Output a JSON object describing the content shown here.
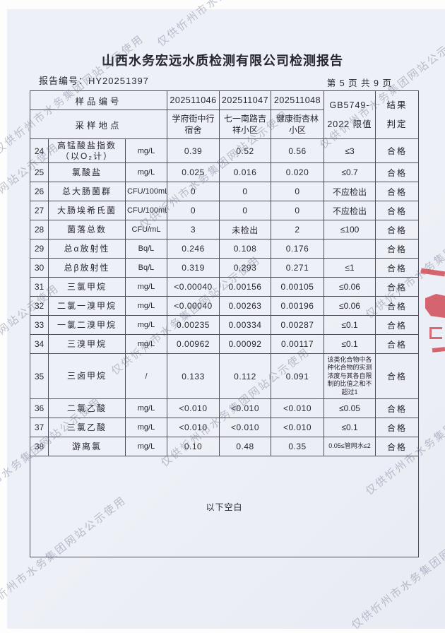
{
  "page": {
    "title": "山西水务宏远水质检测有限公司检测报告",
    "report_no": "报告编号：HY20251397",
    "page_indicator": "第 5 页 共 9 页",
    "below_blank": "以下空白"
  },
  "watermark": {
    "text": "仅供忻州市水务集团网站公示使用"
  },
  "stamp": {
    "color": "#cd3e48",
    "description": "partial-red-seal-cut-off-at-right-edge"
  },
  "table": {
    "header": {
      "sample_no_label": "样品编号",
      "location_label": "采样地点",
      "sample_ids": [
        "202511046",
        "202511047",
        "202511048"
      ],
      "locations": [
        "学府街中行宿舍",
        "七一南路吉祥小区",
        "健康街杏林小区"
      ],
      "limit_label_line1": "GB5749-",
      "limit_label_line2": "2022 限值",
      "result_label_line1": "结果",
      "result_label_line2": "判定"
    },
    "rows": [
      {
        "no": "24",
        "param_lines": [
          "高锰酸盐指数",
          "（以O₂计）"
        ],
        "unit": "mg/L",
        "values": [
          "0.39",
          "0.52",
          "0.56"
        ],
        "limit": "≤3",
        "result": "合格"
      },
      {
        "no": "25",
        "param_lines": [
          "氯酸盐"
        ],
        "unit": "mg/L",
        "values": [
          "0.025",
          "0.016",
          "0.020"
        ],
        "limit": "≤0.7",
        "result": "合格"
      },
      {
        "no": "26",
        "param_lines": [
          "总大肠菌群"
        ],
        "unit": "CFU/100mL",
        "values": [
          "0",
          "0",
          "0"
        ],
        "limit": "不应检出",
        "result": "合格"
      },
      {
        "no": "27",
        "param_lines": [
          "大肠埃希氏菌"
        ],
        "unit": "CFU/100mL",
        "values": [
          "0",
          "0",
          "0"
        ],
        "limit": "不应检出",
        "result": "合格"
      },
      {
        "no": "28",
        "param_lines": [
          "菌落总数"
        ],
        "unit": "CFU/mL",
        "values": [
          "3",
          "未检出",
          "2"
        ],
        "limit": "≤100",
        "result": "合格"
      },
      {
        "no": "29",
        "param_lines": [
          "总α放射性"
        ],
        "unit": "Bq/L",
        "values": [
          "0.246",
          "0.108",
          "0.176"
        ],
        "limit": "",
        "result": "合格"
      },
      {
        "no": "30",
        "param_lines": [
          "总β放射性"
        ],
        "unit": "Bq/L",
        "values": [
          "0.319",
          "0.293",
          "0.271"
        ],
        "limit": "≤1",
        "result": "合格"
      },
      {
        "no": "31",
        "param_lines": [
          "三氯甲烷"
        ],
        "unit": "mg/L",
        "values": [
          "<0.00040",
          "0.00156",
          "0.00105"
        ],
        "limit": "≤0.06",
        "result": "合格"
      },
      {
        "no": "32",
        "param_lines": [
          "二氯一溴甲烷"
        ],
        "unit": "mg/L",
        "values": [
          "<0.00040",
          "0.00263",
          "0.00196"
        ],
        "limit": "≤0.06",
        "result": "合格"
      },
      {
        "no": "33",
        "param_lines": [
          "一氯二溴甲烷"
        ],
        "unit": "mg/L",
        "values": [
          "0.00235",
          "0.00334",
          "0.00287"
        ],
        "limit": "≤0.1",
        "result": "合格"
      },
      {
        "no": "34",
        "param_lines": [
          "三溴甲烷"
        ],
        "unit": "mg/L",
        "values": [
          "0.00962",
          "0.00092",
          "0.00117"
        ],
        "limit": "≤0.1",
        "result": "合格"
      },
      {
        "no": "35",
        "param_lines": [
          "三卤甲烷"
        ],
        "unit": "/",
        "values": [
          "0.133",
          "0.112",
          "0.091"
        ],
        "limit": "该类化合物中各种化合物的实测浓度与其各自限制的比值之和不超过1",
        "result": "合格"
      },
      {
        "no": "36",
        "param_lines": [
          "二氯乙酸"
        ],
        "unit": "mg/L",
        "values": [
          "<0.010",
          "<0.010",
          "<0.010"
        ],
        "limit": "≤0.05",
        "result": "合格"
      },
      {
        "no": "37",
        "param_lines": [
          "三氯乙酸"
        ],
        "unit": "mg/L",
        "values": [
          "<0.010",
          "<0.010",
          "<0.010"
        ],
        "limit": "≤0.1",
        "result": "合格"
      },
      {
        "no": "38",
        "param_lines": [
          "游离氯"
        ],
        "unit": "mg/L",
        "values": [
          "0.10",
          "0.48",
          "0.35"
        ],
        "limit": "0.05≤管网水≤2",
        "result": "合格"
      }
    ]
  }
}
